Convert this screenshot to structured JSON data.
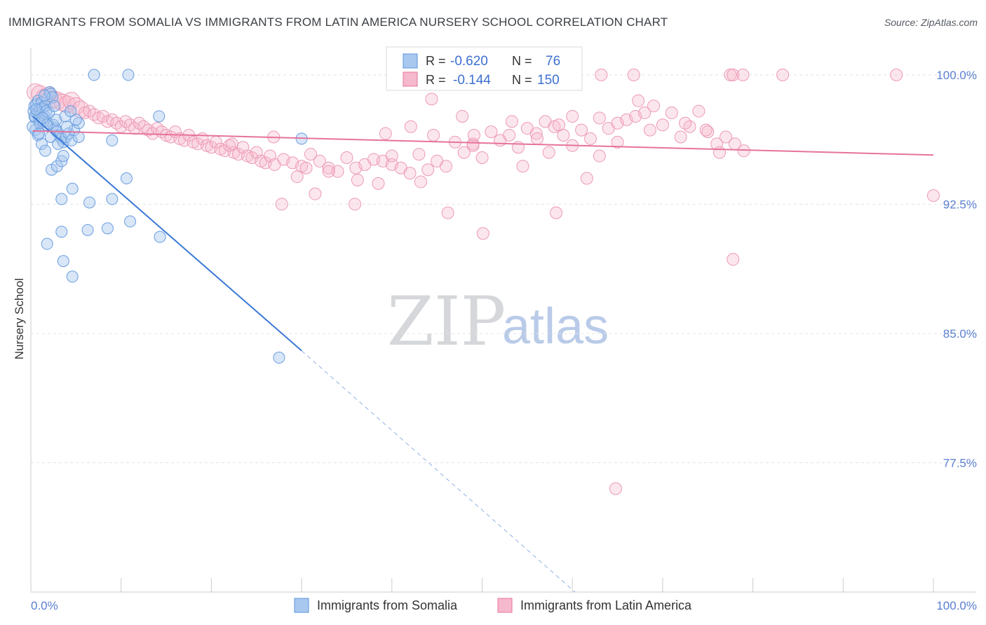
{
  "title": "IMMIGRANTS FROM SOMALIA VS IMMIGRANTS FROM LATIN AMERICA NURSERY SCHOOL CORRELATION CHART",
  "source": "Source: ZipAtlas.com",
  "colors": {
    "blue": "#5b93dd",
    "blue_fill": "#a9c8f0",
    "pink": "#e6739c",
    "pink_fill": "#f6b8cc",
    "tick": "#5a7fd0"
  },
  "legend": {
    "r_label": "R =",
    "n_label": "N =",
    "series": [
      {
        "name": "Immigrants from Somalia",
        "r": "-0.620",
        "n": "76"
      },
      {
        "name": "Immigrants from Latin America",
        "r": "-0.144",
        "n": "150"
      }
    ]
  },
  "watermark": {
    "zip": "ZIP",
    "atlas": "atlas"
  },
  "chart_data": {
    "type": "scatter",
    "title": "IMMIGRANTS FROM SOMALIA VS IMMIGRANTS FROM LATIN AMERICA NURSERY SCHOOL CORRELATION CHART",
    "xlabel": "",
    "ylabel": "Nursery School",
    "xlim": [
      0,
      100
    ],
    "ylim": [
      70.0,
      101.5
    ],
    "x_tick_labels": [
      "0.0%",
      "100.0%"
    ],
    "y_ticks": [
      77.5,
      85.0,
      92.5,
      100.0
    ],
    "y_tick_labels": [
      "77.5%",
      "85.0%",
      "92.5%",
      "100.0%"
    ],
    "grid": true,
    "series": [
      {
        "name": "Immigrants from Somalia",
        "color": "#5b93dd",
        "trend": {
          "x0": 0.2,
          "y0": 97.6,
          "x1": 30.0,
          "y1": 84.0,
          "dash_to_x": 60.3,
          "dash_to_y": 70.0
        },
        "points": [
          [
            0.3,
            97.9
          ],
          [
            0.4,
            98.2
          ],
          [
            0.5,
            97.5
          ],
          [
            0.6,
            98.3
          ],
          [
            0.7,
            97.8
          ],
          [
            0.8,
            98.5
          ],
          [
            0.9,
            97.4
          ],
          [
            1.0,
            98.0
          ],
          [
            1.1,
            97.7
          ],
          [
            1.2,
            98.4
          ],
          [
            1.3,
            98.1
          ],
          [
            1.4,
            97.3
          ],
          [
            1.5,
            97.6
          ],
          [
            1.6,
            98.2
          ],
          [
            1.7,
            97.9
          ],
          [
            1.8,
            98.6
          ],
          [
            1.9,
            97.2
          ],
          [
            2.0,
            97.8
          ],
          [
            2.1,
            99.0
          ],
          [
            2.2,
            98.9
          ],
          [
            2.4,
            98.7
          ],
          [
            2.5,
            97.1
          ],
          [
            2.7,
            96.9
          ],
          [
            2.9,
            96.7
          ],
          [
            3.2,
            96.5
          ],
          [
            3.4,
            96.3
          ],
          [
            3.6,
            96.1
          ],
          [
            3.9,
            96.4
          ],
          [
            4.2,
            96.6
          ],
          [
            4.5,
            96.2
          ],
          [
            4.8,
            96.8
          ],
          [
            5.3,
            97.2
          ],
          [
            0.5,
            96.8
          ],
          [
            0.8,
            96.5
          ],
          [
            1.2,
            96.0
          ],
          [
            1.6,
            95.6
          ],
          [
            2.3,
            94.5
          ],
          [
            2.9,
            94.7
          ],
          [
            3.4,
            95.0
          ],
          [
            3.6,
            95.3
          ],
          [
            4.6,
            93.4
          ],
          [
            5.3,
            96.4
          ],
          [
            3.4,
            92.8
          ],
          [
            6.5,
            92.6
          ],
          [
            9.0,
            96.2
          ],
          [
            9.0,
            92.8
          ],
          [
            6.3,
            91.0
          ],
          [
            8.5,
            91.1
          ],
          [
            3.4,
            90.9
          ],
          [
            11.0,
            91.5
          ],
          [
            1.8,
            90.2
          ],
          [
            14.3,
            90.6
          ],
          [
            3.6,
            89.2
          ],
          [
            4.6,
            88.3
          ],
          [
            30.0,
            96.3
          ],
          [
            27.5,
            83.6
          ],
          [
            7.0,
            100.0
          ],
          [
            10.8,
            100.0
          ],
          [
            0.2,
            97.0
          ],
          [
            0.4,
            97.6
          ],
          [
            0.6,
            98.0
          ],
          [
            1.0,
            97.2
          ],
          [
            1.5,
            98.8
          ],
          [
            2.8,
            97.4
          ],
          [
            4.0,
            97.0
          ],
          [
            5.0,
            97.4
          ],
          [
            3.0,
            96.0
          ],
          [
            2.2,
            96.4
          ],
          [
            1.8,
            97.1
          ],
          [
            0.9,
            96.6
          ],
          [
            3.8,
            97.6
          ],
          [
            4.4,
            97.9
          ],
          [
            2.6,
            98.2
          ],
          [
            1.3,
            97.5
          ],
          [
            10.6,
            94.0
          ],
          [
            14.2,
            97.6
          ]
        ]
      },
      {
        "name": "Immigrants from Latin America",
        "color": "#e6739c",
        "trend": {
          "x0": 0.2,
          "y0": 96.75,
          "x1": 100.0,
          "y1": 95.35
        },
        "points": [
          [
            0.5,
            99.0
          ],
          [
            1.0,
            98.9
          ],
          [
            1.5,
            98.7
          ],
          [
            2.0,
            98.8
          ],
          [
            2.5,
            98.6
          ],
          [
            3.0,
            98.5
          ],
          [
            3.5,
            98.4
          ],
          [
            4.0,
            98.3
          ],
          [
            4.5,
            98.5
          ],
          [
            5.0,
            98.2
          ],
          [
            5.5,
            98.0
          ],
          [
            6.0,
            97.8
          ],
          [
            6.5,
            97.9
          ],
          [
            7.0,
            97.7
          ],
          [
            7.5,
            97.5
          ],
          [
            8.0,
            97.6
          ],
          [
            8.5,
            97.3
          ],
          [
            9.0,
            97.4
          ],
          [
            9.5,
            97.2
          ],
          [
            10.0,
            97.0
          ],
          [
            10.5,
            97.3
          ],
          [
            11.0,
            97.1
          ],
          [
            11.5,
            96.9
          ],
          [
            12.0,
            97.2
          ],
          [
            12.5,
            97.0
          ],
          [
            13.0,
            96.8
          ],
          [
            13.5,
            96.6
          ],
          [
            14.0,
            96.9
          ],
          [
            14.5,
            96.7
          ],
          [
            15.0,
            96.5
          ],
          [
            15.5,
            96.4
          ],
          [
            16.0,
            96.7
          ],
          [
            16.5,
            96.3
          ],
          [
            17.0,
            96.2
          ],
          [
            17.5,
            96.5
          ],
          [
            18.0,
            96.1
          ],
          [
            18.5,
            96.0
          ],
          [
            19.0,
            96.3
          ],
          [
            19.5,
            95.9
          ],
          [
            20.0,
            95.8
          ],
          [
            20.5,
            96.1
          ],
          [
            21.0,
            95.7
          ],
          [
            21.5,
            95.6
          ],
          [
            22.0,
            95.9
          ],
          [
            22.5,
            95.5
          ],
          [
            23.0,
            95.4
          ],
          [
            23.5,
            95.8
          ],
          [
            24.0,
            95.3
          ],
          [
            24.5,
            95.2
          ],
          [
            25.0,
            95.5
          ],
          [
            25.5,
            95.0
          ],
          [
            26.0,
            94.9
          ],
          [
            26.5,
            95.3
          ],
          [
            27.0,
            94.8
          ],
          [
            28.0,
            95.1
          ],
          [
            29.0,
            94.9
          ],
          [
            29.5,
            94.1
          ],
          [
            30.0,
            94.7
          ],
          [
            31.0,
            95.4
          ],
          [
            32.0,
            95.0
          ],
          [
            33.0,
            94.6
          ],
          [
            34.0,
            94.4
          ],
          [
            35.0,
            95.2
          ],
          [
            36.0,
            94.6
          ],
          [
            37.0,
            94.8
          ],
          [
            38.0,
            95.1
          ],
          [
            39.0,
            95.0
          ],
          [
            40.0,
            94.8
          ],
          [
            41.0,
            94.6
          ],
          [
            42.0,
            94.3
          ],
          [
            43.0,
            95.4
          ],
          [
            44.0,
            94.5
          ],
          [
            45.0,
            95.0
          ],
          [
            46.0,
            94.7
          ],
          [
            47.0,
            96.1
          ],
          [
            48.0,
            95.5
          ],
          [
            49.0,
            96.0
          ],
          [
            50.0,
            95.2
          ],
          [
            51.0,
            96.7
          ],
          [
            52.0,
            96.2
          ],
          [
            53.0,
            96.5
          ],
          [
            54.0,
            95.8
          ],
          [
            55.0,
            96.9
          ],
          [
            56.0,
            96.6
          ],
          [
            57.0,
            97.3
          ],
          [
            58.0,
            97.0
          ],
          [
            59.0,
            96.5
          ],
          [
            60.0,
            95.9
          ],
          [
            61.0,
            96.8
          ],
          [
            62.0,
            96.3
          ],
          [
            63.0,
            97.5
          ],
          [
            64.0,
            96.9
          ],
          [
            65.0,
            97.2
          ],
          [
            66.0,
            97.4
          ],
          [
            67.0,
            97.6
          ],
          [
            68.0,
            97.8
          ],
          [
            69.0,
            98.2
          ],
          [
            70.0,
            97.1
          ],
          [
            71.0,
            97.8
          ],
          [
            72.0,
            96.4
          ],
          [
            73.0,
            97.0
          ],
          [
            74.0,
            97.9
          ],
          [
            75.0,
            96.7
          ],
          [
            76.0,
            96.0
          ],
          [
            77.0,
            96.4
          ],
          [
            78.0,
            96.0
          ],
          [
            79.0,
            95.6
          ],
          [
            31.5,
            93.1
          ],
          [
            27.8,
            92.5
          ],
          [
            35.9,
            92.5
          ],
          [
            38.5,
            93.7
          ],
          [
            40.0,
            95.3
          ],
          [
            46.2,
            92.0
          ],
          [
            39.3,
            96.6
          ],
          [
            44.6,
            96.5
          ],
          [
            49.1,
            96.5
          ],
          [
            56.1,
            96.3
          ],
          [
            58.5,
            97.1
          ],
          [
            76.3,
            95.5
          ],
          [
            36.2,
            93.9
          ],
          [
            30.5,
            94.6
          ],
          [
            33.0,
            94.4
          ],
          [
            57.4,
            95.5
          ],
          [
            63.0,
            95.3
          ],
          [
            43.2,
            93.8
          ],
          [
            54.5,
            94.7
          ],
          [
            65.0,
            96.1
          ],
          [
            67.3,
            98.5
          ],
          [
            50.1,
            90.8
          ],
          [
            58.2,
            92.0
          ],
          [
            77.8,
            89.3
          ],
          [
            100.0,
            93.0
          ],
          [
            64.8,
            76.0
          ],
          [
            61.6,
            94.0
          ],
          [
            49.0,
            95.9
          ],
          [
            47.8,
            97.6
          ],
          [
            63.2,
            100.0
          ],
          [
            66.8,
            100.0
          ],
          [
            77.5,
            100.0
          ],
          [
            77.8,
            100.0
          ],
          [
            78.9,
            100.0
          ],
          [
            83.3,
            100.0
          ],
          [
            95.9,
            100.0
          ],
          [
            44.4,
            98.6
          ],
          [
            42.1,
            97.0
          ],
          [
            53.3,
            97.3
          ],
          [
            60.0,
            97.6
          ],
          [
            72.5,
            97.2
          ],
          [
            74.8,
            96.8
          ],
          [
            68.6,
            96.8
          ],
          [
            26.9,
            96.4
          ],
          [
            22.3,
            96.0
          ]
        ]
      }
    ]
  }
}
